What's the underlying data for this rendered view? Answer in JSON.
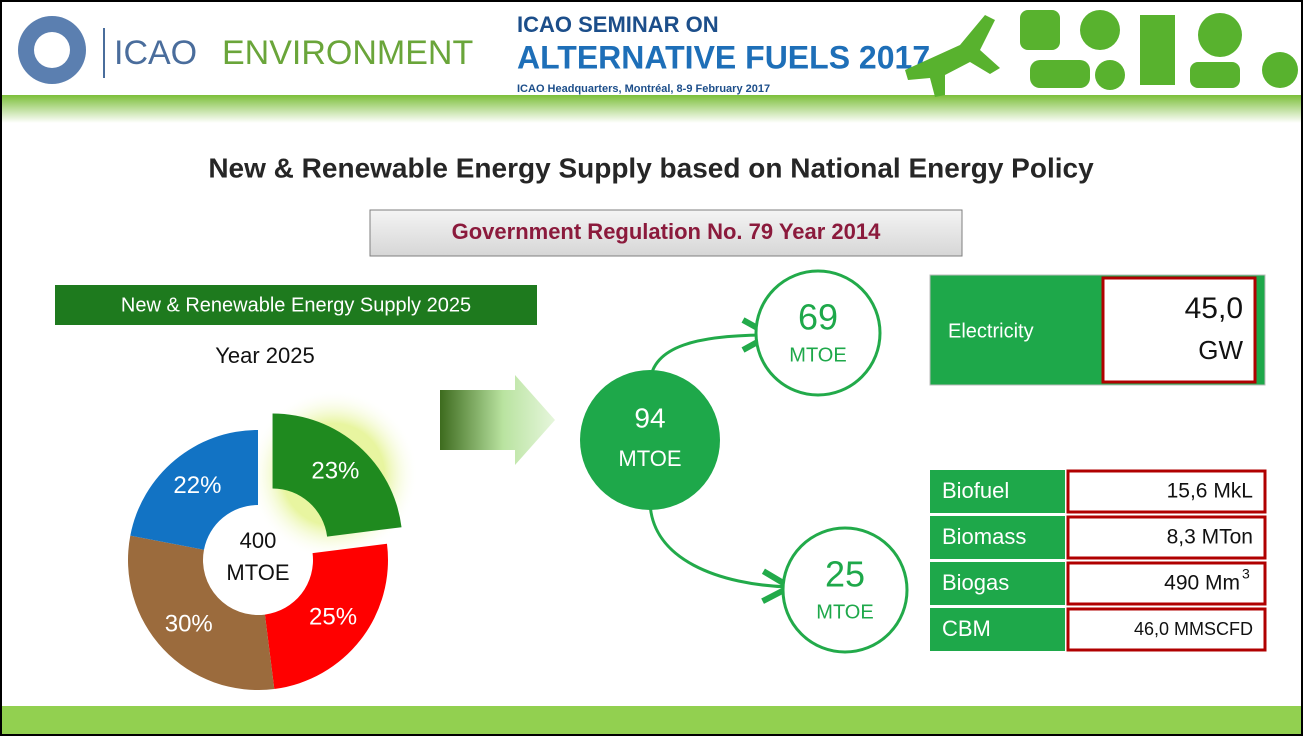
{
  "header": {
    "logo_text": "ICAO",
    "section": "ENVIRONMENT",
    "seminar_line1": "ICAO SEMINAR ON",
    "seminar_line2": "ALTERNATIVE FUELS 2017",
    "seminar_line3": "ICAO Headquarters, Montréal, 8-9 February 2017"
  },
  "title": "New & Renewable Energy Supply based on National Energy Policy",
  "subtitle": "Government Regulation No. 79 Year 2014",
  "chart_data": {
    "type": "pie",
    "title": "New & Renewable Energy Supply  2025",
    "subtitle": "Year 2025",
    "center_label": [
      "400",
      "MTOE"
    ],
    "values": [
      23,
      25,
      30,
      22
    ],
    "value_labels": [
      "23%",
      "25%",
      "30%",
      "22%"
    ],
    "colors": [
      "#1f8a1f",
      "#ff0000",
      "#9b6b3d",
      "#1273c4"
    ],
    "exploded": [
      true,
      false,
      false,
      false
    ]
  },
  "flow": {
    "total": {
      "value": "94",
      "unit": "MTOE"
    },
    "upper": {
      "value": "69",
      "unit": "MTOE"
    },
    "lower": {
      "value": "25",
      "unit": "MTOE"
    }
  },
  "electricity": {
    "label": "Electricity",
    "value": "45,0",
    "unit": "GW"
  },
  "fuels": [
    {
      "label": "Biofuel",
      "value": "15,6 MkL"
    },
    {
      "label": "Biomass",
      "value": "8,3 MTon"
    },
    {
      "label": "Biogas",
      "value": "490 Mm",
      "sup": "3"
    },
    {
      "label": "CBM",
      "value": "46,0 MMSCFD"
    }
  ]
}
